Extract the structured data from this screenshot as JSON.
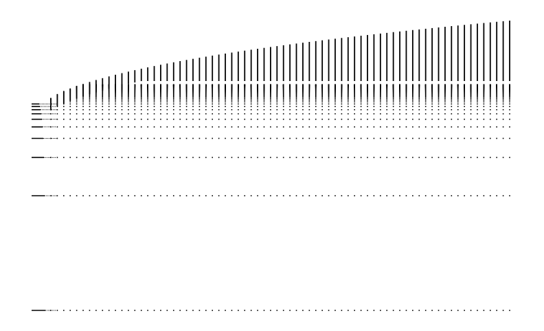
{
  "figure": {
    "kind": "dot-lattice",
    "ink_color": "#000000",
    "background_color": "#ffffff",
    "column_count": 72,
    "row_count": 64
  }
}
